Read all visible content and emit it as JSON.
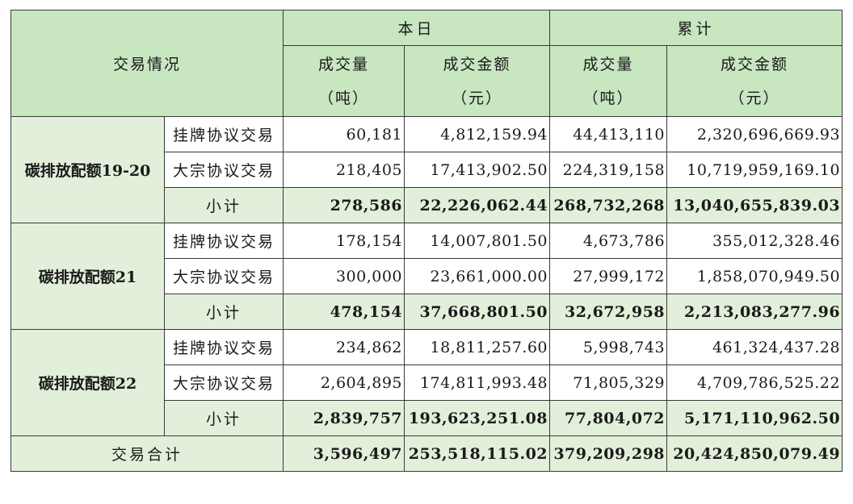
{
  "header": {
    "corner": "交易情况",
    "today": "本日",
    "cumulative": "累计",
    "volume": "成交量",
    "volume_unit": "（吨）",
    "amount": "成交金额",
    "amount_unit": "（元）"
  },
  "groups": [
    {
      "name": "碳排放配额19-20",
      "rows": [
        {
          "type": "挂牌协议交易",
          "day_vol": "60,181",
          "day_amt": "4,812,159.94",
          "cum_vol": "44,413,110",
          "cum_amt": "2,320,696,669.93"
        },
        {
          "type": "大宗协议交易",
          "day_vol": "218,405",
          "day_amt": "17,413,902.50",
          "cum_vol": "224,319,158",
          "cum_amt": "10,719,959,169.10"
        }
      ],
      "subtotal": {
        "label": "小计",
        "day_vol": "278,586",
        "day_amt": "22,226,062.44",
        "cum_vol": "268,732,268",
        "cum_amt": "13,040,655,839.03"
      }
    },
    {
      "name": "碳排放配额21",
      "rows": [
        {
          "type": "挂牌协议交易",
          "day_vol": "178,154",
          "day_amt": "14,007,801.50",
          "cum_vol": "4,673,786",
          "cum_amt": "355,012,328.46"
        },
        {
          "type": "大宗协议交易",
          "day_vol": "300,000",
          "day_amt": "23,661,000.00",
          "cum_vol": "27,999,172",
          "cum_amt": "1,858,070,949.50"
        }
      ],
      "subtotal": {
        "label": "小计",
        "day_vol": "478,154",
        "day_amt": "37,668,801.50",
        "cum_vol": "32,672,958",
        "cum_amt": "2,213,083,277.96"
      }
    },
    {
      "name": "碳排放配额22",
      "rows": [
        {
          "type": "挂牌协议交易",
          "day_vol": "234,862",
          "day_amt": "18,811,257.60",
          "cum_vol": "5,998,743",
          "cum_amt": "461,324,437.28"
        },
        {
          "type": "大宗协议交易",
          "day_vol": "2,604,895",
          "day_amt": "174,811,993.48",
          "cum_vol": "71,805,329",
          "cum_amt": "4,709,786,525.22"
        }
      ],
      "subtotal": {
        "label": "小计",
        "day_vol": "2,839,757",
        "day_amt": "193,623,251.08",
        "cum_vol": "77,804,072",
        "cum_amt": "5,171,110,962.50"
      }
    }
  ],
  "total": {
    "label": "交易合计",
    "day_vol": "3,596,497",
    "day_amt": "253,518,115.02",
    "cum_vol": "379,209,298",
    "cum_amt": "20,424,850,079.49"
  },
  "colors": {
    "header_bg": "#c8e6c0",
    "subtotal_bg": "#e2efda",
    "border": "#3a3a3a"
  }
}
